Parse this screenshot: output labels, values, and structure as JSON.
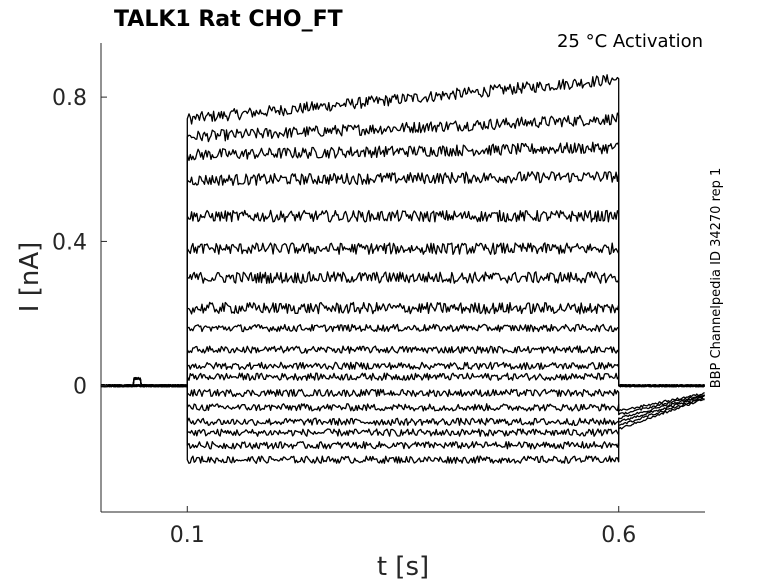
{
  "chart_data": {
    "type": "line",
    "title": "TALK1  Rat  CHO_FT",
    "annotation": "25 °C  Activation",
    "side_label": "BBP Channelpedia ID 34270 rep 1",
    "xlabel": "t [s]",
    "ylabel": "I [nA]",
    "xlim": [
      0.0,
      0.7
    ],
    "ylim": [
      -0.35,
      0.95
    ],
    "xticks": [
      0.1,
      0.6
    ],
    "xtick_labels": [
      "0.1",
      "0.6"
    ],
    "yticks": [
      0,
      0.4,
      0.8
    ],
    "ytick_labels": [
      "0",
      "0.4",
      "0.8"
    ],
    "grid": false,
    "stimulus": {
      "on": 0.1,
      "off": 0.6
    },
    "series": [
      {
        "start": 0.74,
        "end": 0.85
      },
      {
        "start": 0.69,
        "end": 0.74
      },
      {
        "start": 0.64,
        "end": 0.66
      },
      {
        "start": 0.57,
        "end": 0.58
      },
      {
        "start": 0.47,
        "end": 0.47
      },
      {
        "start": 0.38,
        "end": 0.38
      },
      {
        "start": 0.3,
        "end": 0.3
      },
      {
        "start": 0.215,
        "end": 0.215
      },
      {
        "start": 0.16,
        "end": 0.16
      },
      {
        "start": 0.1,
        "end": 0.1
      },
      {
        "start": 0.055,
        "end": 0.055
      },
      {
        "start": 0.025,
        "end": 0.025
      },
      {
        "start": -0.02,
        "end": -0.02
      },
      {
        "start": -0.06,
        "end": -0.06
      },
      {
        "start": -0.1,
        "end": -0.1
      },
      {
        "start": -0.13,
        "end": -0.13
      },
      {
        "start": -0.165,
        "end": -0.165
      },
      {
        "start": -0.205,
        "end": -0.205
      }
    ]
  }
}
